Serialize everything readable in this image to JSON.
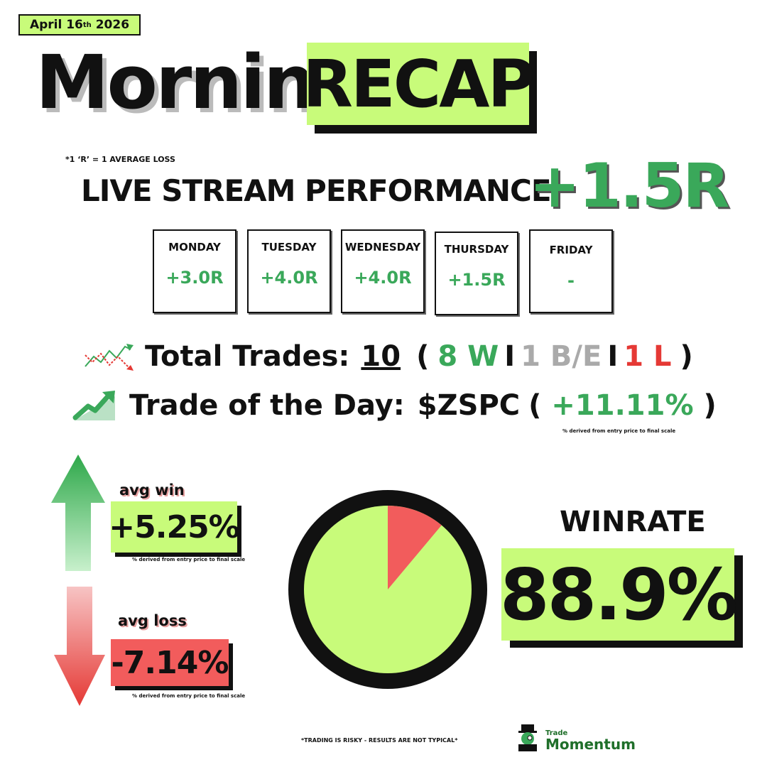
{
  "header": {
    "date_main": "April 16",
    "date_suffix": "th",
    "date_year": "2026",
    "title_word": "Morning",
    "title_highlight": "RECAP"
  },
  "performance": {
    "footnote": "*1 ‘R’ = 1 AVERAGE LOSS",
    "label": "LIVE STREAM PERFORMANCE:",
    "value": "+1.5R"
  },
  "days": [
    {
      "name": "MONDAY",
      "value": "+3.0R"
    },
    {
      "name": "TUESDAY",
      "value": "+4.0R"
    },
    {
      "name": "WEDNESDAY",
      "value": "+4.0R"
    },
    {
      "name": "THURSDAY",
      "value": "+1.5R"
    },
    {
      "name": "FRIDAY",
      "value": "-"
    }
  ],
  "trades": {
    "icon": "trend-chart-icon",
    "label": "Total Trades:",
    "total": "10",
    "open_paren": "(",
    "wins": "8 W",
    "breakeven": "1 B/E",
    "losses": "1 L",
    "separator": "I",
    "close_paren": ")"
  },
  "trade_of_day": {
    "icon": "growth-arrow-icon",
    "label": "Trade of the Day:",
    "ticker": "$ZSPC",
    "open_paren": "(",
    "percent": "+11.11%",
    "close_paren": ")",
    "note": "% derived from entry price to final scale"
  },
  "averages": {
    "win_label": "avg win",
    "win_value": "+5.25%",
    "loss_label": "avg loss",
    "loss_value": "-7.14%",
    "note": "% derived from entry price to final scale"
  },
  "winrate": {
    "label": "WINRATE",
    "value": "88.9%",
    "fraction": 0.889
  },
  "footer": {
    "disclaimer": "*TRADING IS RISKY - RESULTS ARE NOT TYPICAL*",
    "brand_top": "Trade",
    "brand_bottom": "Momentum"
  },
  "colors": {
    "accent_green": "#c8fb7a",
    "profit_green": "#3aa85a",
    "loss_red": "#f25c5c"
  }
}
